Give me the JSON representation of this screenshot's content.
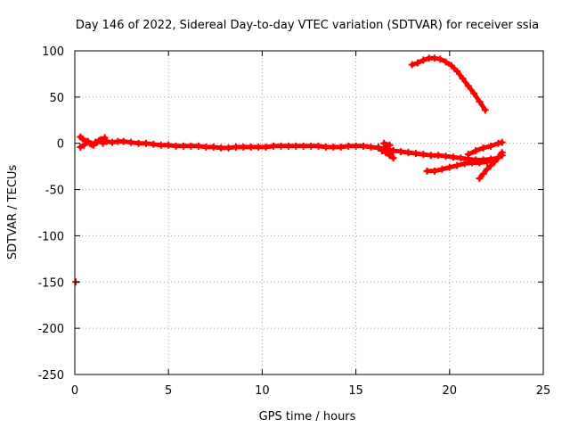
{
  "chart_data": {
    "type": "scatter",
    "title": "Day 146 of 2022, Sidereal Day-to-day VTEC variation (SDTVAR) for receiver ssia",
    "xlabel": "GPS time / hours",
    "ylabel": "SDTVAR / TECUs",
    "xlim": [
      0,
      25
    ],
    "ylim": [
      -250,
      100
    ],
    "xticks": [
      0,
      5,
      10,
      15,
      20,
      25
    ],
    "yticks": [
      -250,
      -200,
      -150,
      -100,
      -50,
      0,
      50,
      100
    ],
    "xtick_labels": [
      "0",
      "5",
      "10",
      "15",
      "20",
      "25"
    ],
    "ytick_labels": [
      "-250",
      "-200",
      "-150",
      "-100",
      "-50",
      "0",
      "50",
      "100"
    ],
    "grid": true,
    "marker_color": "#ff0000",
    "series": [
      {
        "values": [
          [
            0.3,
            -4
          ],
          [
            0.5,
            -2
          ],
          [
            0.7,
            2
          ],
          [
            0.9,
            -1
          ],
          [
            1.1,
            1
          ],
          [
            1.3,
            3
          ],
          [
            1.5,
            0
          ],
          [
            1.7,
            2
          ],
          [
            2.0,
            1
          ],
          [
            2.3,
            2
          ],
          [
            2.6,
            2
          ],
          [
            3.0,
            1
          ],
          [
            3.4,
            0
          ],
          [
            3.8,
            0
          ],
          [
            4.2,
            -1
          ],
          [
            4.6,
            -2
          ],
          [
            5.0,
            -2
          ],
          [
            5.4,
            -3
          ],
          [
            5.8,
            -3
          ],
          [
            6.2,
            -3
          ],
          [
            6.6,
            -3
          ],
          [
            7.0,
            -4
          ],
          [
            7.4,
            -4
          ],
          [
            7.8,
            -5
          ],
          [
            8.2,
            -5
          ],
          [
            8.6,
            -4
          ],
          [
            9.0,
            -4
          ],
          [
            9.4,
            -4
          ],
          [
            9.8,
            -4
          ],
          [
            10.2,
            -4
          ],
          [
            10.6,
            -3
          ],
          [
            11.0,
            -3
          ],
          [
            11.4,
            -3
          ],
          [
            11.8,
            -3
          ],
          [
            12.2,
            -3
          ],
          [
            12.6,
            -3
          ],
          [
            13.0,
            -3
          ],
          [
            13.4,
            -4
          ],
          [
            13.8,
            -4
          ],
          [
            14.2,
            -4
          ],
          [
            14.6,
            -3
          ],
          [
            15.0,
            -3
          ],
          [
            15.4,
            -3
          ],
          [
            15.8,
            -4
          ],
          [
            16.2,
            -5
          ],
          [
            16.6,
            -6
          ],
          [
            17.0,
            -8
          ],
          [
            17.4,
            -9
          ],
          [
            17.8,
            -10
          ],
          [
            18.2,
            -11
          ],
          [
            18.6,
            -12
          ],
          [
            19.0,
            -13
          ],
          [
            19.4,
            -13
          ],
          [
            19.8,
            -14
          ],
          [
            20.2,
            -15
          ],
          [
            20.6,
            -16
          ],
          [
            21.0,
            -17
          ],
          [
            21.4,
            -18
          ],
          [
            21.8,
            -18
          ],
          [
            22.2,
            -17
          ],
          [
            22.6,
            -16
          ]
        ]
      },
      {
        "values": [
          [
            0.3,
            7
          ],
          [
            0.4,
            5
          ],
          [
            0.6,
            2
          ],
          [
            0.8,
            0
          ],
          [
            1.0,
            -2
          ],
          [
            1.2,
            1
          ],
          [
            1.4,
            4
          ],
          [
            1.6,
            6
          ]
        ]
      },
      {
        "values": [
          [
            16.2,
            -4
          ],
          [
            16.4,
            -8
          ],
          [
            16.6,
            -10
          ],
          [
            16.8,
            -13
          ],
          [
            17.0,
            -16
          ],
          [
            16.5,
            0
          ],
          [
            16.8,
            -2
          ]
        ]
      },
      {
        "values": [
          [
            18.0,
            85
          ],
          [
            18.3,
            87
          ],
          [
            18.6,
            90
          ],
          [
            18.9,
            92
          ],
          [
            19.2,
            92
          ],
          [
            19.5,
            91
          ],
          [
            19.8,
            88
          ],
          [
            20.1,
            84
          ],
          [
            20.4,
            78
          ],
          [
            20.7,
            70
          ],
          [
            21.0,
            62
          ],
          [
            21.3,
            54
          ],
          [
            21.6,
            45
          ],
          [
            21.9,
            36
          ]
        ]
      },
      {
        "values": [
          [
            18.8,
            -30
          ],
          [
            19.2,
            -30
          ],
          [
            19.6,
            -28
          ],
          [
            20.0,
            -26
          ],
          [
            20.4,
            -24
          ],
          [
            20.8,
            -22
          ],
          [
            21.2,
            -21
          ],
          [
            21.6,
            -21
          ],
          [
            22.0,
            -20
          ],
          [
            22.4,
            -18
          ],
          [
            22.8,
            -13
          ]
        ]
      },
      {
        "values": [
          [
            21.0,
            -12
          ],
          [
            21.4,
            -8
          ],
          [
            21.8,
            -5
          ],
          [
            22.2,
            -3
          ],
          [
            22.6,
            0
          ],
          [
            22.8,
            1
          ]
        ]
      },
      {
        "values": [
          [
            21.6,
            -38
          ],
          [
            21.8,
            -33
          ],
          [
            22.0,
            -28
          ],
          [
            22.2,
            -24
          ],
          [
            22.4,
            -20
          ],
          [
            22.6,
            -15
          ],
          [
            22.8,
            -10
          ]
        ]
      },
      {
        "values": [
          [
            0.05,
            -150
          ]
        ]
      }
    ]
  }
}
